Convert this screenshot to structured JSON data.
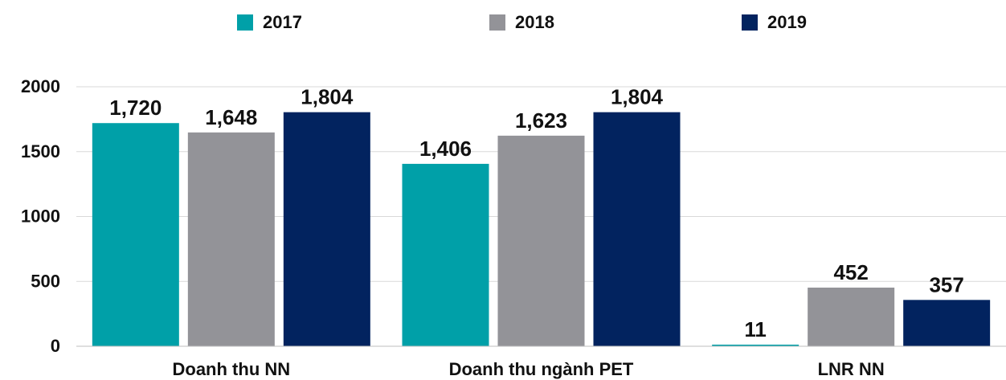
{
  "chart_data": {
    "type": "bar",
    "categories": [
      "Doanh thu NN",
      "Doanh thu ngành PET",
      "LNR NN"
    ],
    "series": [
      {
        "name": "2017",
        "values": [
          1720,
          1406,
          11
        ],
        "labels": [
          "1,720",
          "1,406",
          "11"
        ],
        "color": "#00A0A8"
      },
      {
        "name": "2018",
        "values": [
          1648,
          1623,
          452
        ],
        "labels": [
          "1,648",
          "1,623",
          "452"
        ],
        "color": "#939398"
      },
      {
        "name": "2019",
        "values": [
          1804,
          1804,
          357
        ],
        "labels": [
          "1,804",
          "1,804",
          "357"
        ],
        "color": "#02235F"
      }
    ],
    "y_ticks": [
      "0",
      "500",
      "1000",
      "1500",
      "2000"
    ],
    "ylim": [
      0,
      2000
    ],
    "grid": true,
    "legend_position": "top"
  }
}
